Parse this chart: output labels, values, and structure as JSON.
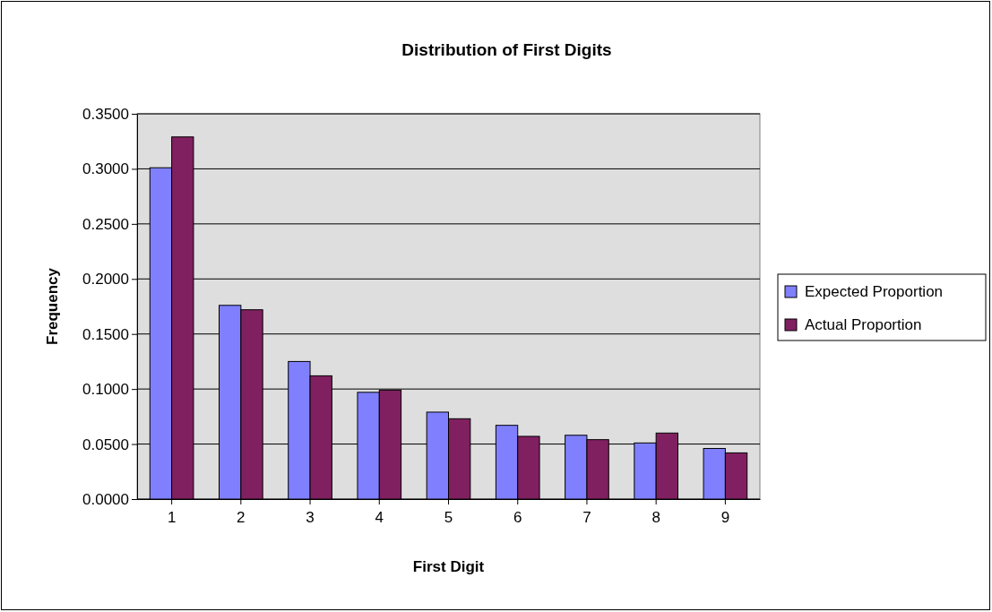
{
  "chart_data": {
    "type": "bar",
    "title": "Distribution of First Digits",
    "xlabel": "First Digit",
    "ylabel": "Frequency",
    "categories": [
      "1",
      "2",
      "3",
      "4",
      "5",
      "6",
      "7",
      "8",
      "9"
    ],
    "series": [
      {
        "name": "Expected Proportion",
        "color": "#8080ff",
        "values": [
          0.301,
          0.176,
          0.125,
          0.097,
          0.079,
          0.067,
          0.058,
          0.051,
          0.046
        ]
      },
      {
        "name": "Actual Proportion",
        "color": "#802060",
        "values": [
          0.329,
          0.172,
          0.112,
          0.099,
          0.073,
          0.057,
          0.054,
          0.06,
          0.042
        ]
      }
    ],
    "ylim": [
      0,
      0.35
    ],
    "yticks": [
      {
        "value": 0,
        "label": "0.0000"
      },
      {
        "value": 0.05,
        "label": "0.0500"
      },
      {
        "value": 0.1,
        "label": "0.1000"
      },
      {
        "value": 0.15,
        "label": "0.1500"
      },
      {
        "value": 0.2,
        "label": "0.2000"
      },
      {
        "value": 0.25,
        "label": "0.2500"
      },
      {
        "value": 0.3,
        "label": "0.3000"
      },
      {
        "value": 0.35,
        "label": "0.3500"
      }
    ],
    "grid": "y",
    "legend": "right"
  }
}
